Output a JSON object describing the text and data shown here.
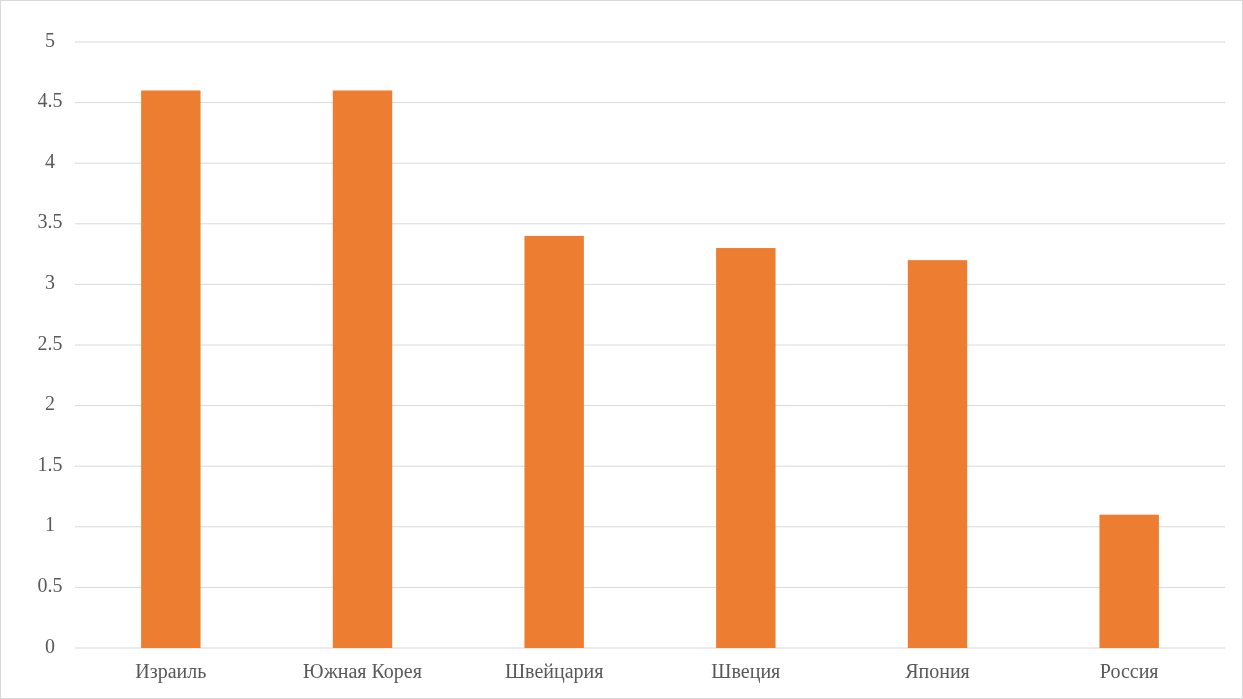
{
  "chart_data": {
    "type": "bar",
    "categories": [
      "Израиль",
      "Южная Корея",
      "Швейцария",
      "Швеция",
      "Япония",
      "Россия"
    ],
    "values": [
      4.6,
      4.6,
      3.4,
      3.3,
      3.2,
      1.1
    ],
    "color": "#ed7d31",
    "ylim": [
      0,
      5
    ],
    "yticks": [
      0,
      0.5,
      1,
      1.5,
      2,
      2.5,
      3,
      3.5,
      4,
      4.5,
      5
    ],
    "grid": "y"
  }
}
